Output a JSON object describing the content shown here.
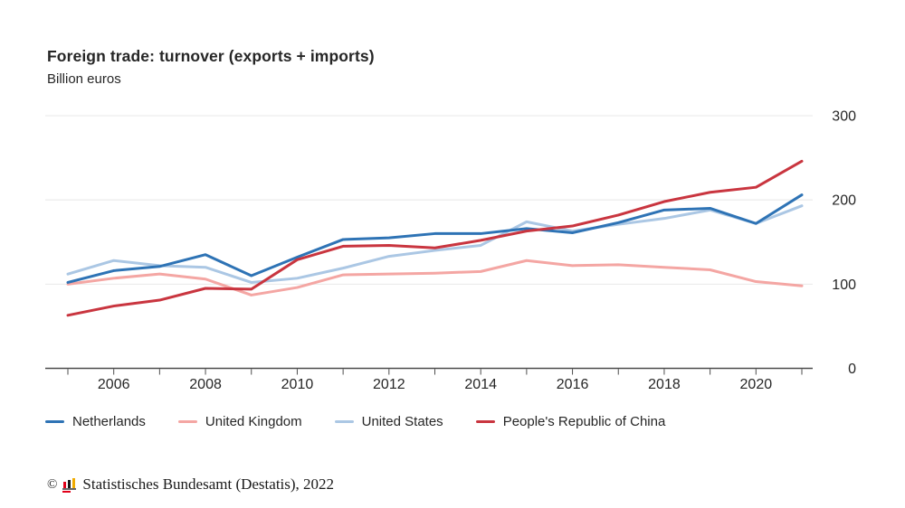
{
  "header": {
    "title": "Foreign trade: turnover (exports + imports)",
    "subtitle": "Billion euros"
  },
  "chart_data": {
    "type": "line",
    "title": "Foreign trade: turnover (exports + imports)",
    "ylabel": "Billion euros",
    "ylim": [
      0,
      300
    ],
    "y_ticks": [
      0,
      100,
      200,
      300
    ],
    "grid": "horizontal",
    "legend_position": "bottom",
    "x": [
      2005,
      2006,
      2007,
      2008,
      2009,
      2010,
      2011,
      2012,
      2013,
      2014,
      2015,
      2016,
      2017,
      2018,
      2019,
      2020,
      2021
    ],
    "x_tick_labels": [
      "2006",
      "2008",
      "2010",
      "2012",
      "2014",
      "2016",
      "2018",
      "2020"
    ],
    "series": [
      {
        "name": "Netherlands",
        "color": "#2e73b5",
        "values": [
          102,
          116,
          121,
          135,
          110,
          132,
          153,
          155,
          160,
          160,
          166,
          161,
          173,
          188,
          190,
          172,
          206
        ]
      },
      {
        "name": "United Kingdom",
        "color": "#f4a6a3",
        "values": [
          100,
          107,
          112,
          106,
          87,
          96,
          111,
          112,
          113,
          115,
          128,
          122,
          123,
          120,
          117,
          103,
          98
        ]
      },
      {
        "name": "United States",
        "color": "#abc7e4",
        "values": [
          112,
          128,
          122,
          120,
          102,
          107,
          119,
          133,
          140,
          146,
          174,
          163,
          171,
          178,
          188,
          172,
          193
        ]
      },
      {
        "name": "People's Republic of China",
        "color": "#c9353f",
        "values": [
          63,
          74,
          81,
          95,
          94,
          129,
          145,
          146,
          143,
          152,
          163,
          169,
          182,
          198,
          209,
          215,
          246
        ]
      }
    ]
  },
  "footer": {
    "copyright_symbol": "©",
    "source": "Statistisches Bundesamt (Destatis), 2022"
  }
}
